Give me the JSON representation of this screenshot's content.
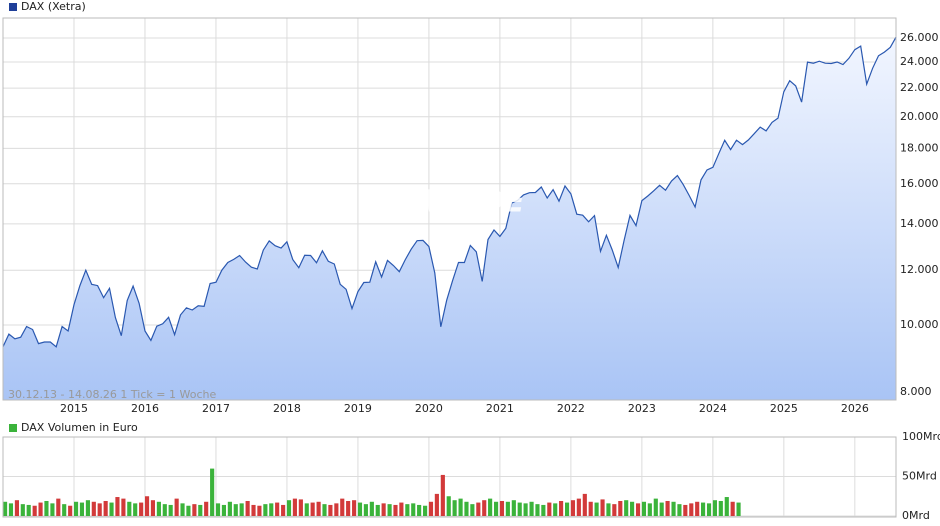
{
  "chart_data": [
    {
      "type": "line",
      "title": "DAX (Xetra)",
      "watermark": "ARIVA.DE",
      "annotation": "30.12.13 - 14.08.26   1 Tick = 1 Woche",
      "log_scale": true,
      "grid": true,
      "color": "#2a58b0",
      "legend_color": "#1f3f99",
      "x": [
        2014.0,
        2014.083,
        2014.167,
        2014.25,
        2014.333,
        2014.417,
        2014.5,
        2014.583,
        2014.667,
        2014.75,
        2014.833,
        2014.917,
        2015.0,
        2015.083,
        2015.167,
        2015.25,
        2015.333,
        2015.417,
        2015.5,
        2015.583,
        2015.667,
        2015.75,
        2015.833,
        2015.917,
        2016.0,
        2016.083,
        2016.167,
        2016.25,
        2016.333,
        2016.417,
        2016.5,
        2016.583,
        2016.667,
        2016.75,
        2016.833,
        2016.917,
        2017.0,
        2017.083,
        2017.167,
        2017.25,
        2017.333,
        2017.417,
        2017.5,
        2017.583,
        2017.667,
        2017.75,
        2017.833,
        2017.917,
        2018.0,
        2018.083,
        2018.167,
        2018.25,
        2018.333,
        2018.417,
        2018.5,
        2018.583,
        2018.667,
        2018.75,
        2018.833,
        2018.917,
        2019.0,
        2019.083,
        2019.167,
        2019.25,
        2019.333,
        2019.417,
        2019.5,
        2019.583,
        2019.667,
        2019.75,
        2019.833,
        2019.917,
        2020.0,
        2020.083,
        2020.167,
        2020.25,
        2020.333,
        2020.417,
        2020.5,
        2020.583,
        2020.667,
        2020.75,
        2020.833,
        2020.917,
        2021.0,
        2021.083,
        2021.167,
        2021.25,
        2021.333,
        2021.417,
        2021.5,
        2021.583,
        2021.667,
        2021.75,
        2021.833,
        2021.917,
        2022.0,
        2022.083,
        2022.167,
        2022.25,
        2022.333,
        2022.417,
        2022.5,
        2022.583,
        2022.667,
        2022.75,
        2022.833,
        2022.917,
        2023.0,
        2023.083,
        2023.167,
        2023.25,
        2023.333,
        2023.417,
        2023.5,
        2023.583,
        2023.667,
        2023.75,
        2023.833,
        2023.917,
        2024.0,
        2024.083,
        2024.167,
        2024.25,
        2024.333,
        2024.417,
        2024.5,
        2024.583,
        2024.667,
        2024.75,
        2024.833,
        2024.917,
        2025.0,
        2025.083,
        2025.167,
        2025.25,
        2025.333,
        2025.417,
        2025.5,
        2025.583,
        2025.667,
        2025.75,
        2025.833,
        2025.917,
        2026.0,
        2026.083,
        2026.167,
        2026.25,
        2026.333,
        2026.417,
        2026.5,
        2026.583
      ],
      "values": [
        9300,
        9700,
        9550,
        9600,
        9950,
        9850,
        9400,
        9450,
        9450,
        9300,
        9950,
        9800,
        10700,
        11400,
        12000,
        11450,
        11400,
        10950,
        11300,
        10250,
        9650,
        10850,
        11380,
        10750,
        9800,
        9500,
        9960,
        10040,
        10260,
        9680,
        10340,
        10590,
        10510,
        10660,
        10640,
        11480,
        11530,
        12000,
        12310,
        12440,
        12600,
        12330,
        12120,
        12050,
        12830,
        13230,
        13020,
        12920,
        13190,
        12430,
        12100,
        12610,
        12600,
        12300,
        12800,
        12360,
        12250,
        11450,
        11260,
        10560,
        11170,
        11520,
        11530,
        12340,
        11730,
        12400,
        12190,
        11940,
        12430,
        12870,
        13240,
        13250,
        12980,
        11890,
        9940,
        10860,
        11590,
        12310,
        12310,
        13030,
        12760,
        11560,
        13290,
        13720,
        13430,
        13790,
        15010,
        15140,
        15420,
        15530,
        15540,
        15830,
        15260,
        15690,
        15100,
        15880,
        15470,
        14460,
        14410,
        14100,
        14390,
        12780,
        13480,
        12830,
        12110,
        13250,
        14400,
        13920,
        15130,
        15360,
        15630,
        15920,
        15660,
        16150,
        16450,
        15950,
        15390,
        14810,
        16210,
        16750,
        16900,
        17680,
        18490,
        17930,
        18500,
        18230,
        18510,
        18900,
        19320,
        19080,
        19630,
        19910,
        21730,
        22550,
        22160,
        21000,
        23990,
        23900,
        24060,
        23900,
        23880,
        24000,
        23800,
        24300,
        25000,
        25300,
        22300,
        23500,
        24500,
        24800,
        25200,
        26100
      ],
      "xlim": [
        2014.0,
        2026.58
      ],
      "xticks": [
        2015,
        2016,
        2017,
        2018,
        2019,
        2020,
        2021,
        2022,
        2023,
        2024,
        2025,
        2026
      ],
      "ylim": [
        7790,
        29500
      ],
      "yticks": [
        {
          "value": 8000,
          "label": "8.000"
        },
        {
          "value": 10000,
          "label": "10.000"
        },
        {
          "value": 12000,
          "label": "12.000"
        },
        {
          "value": 14000,
          "label": "14.000"
        },
        {
          "value": 16000,
          "label": "16.000"
        },
        {
          "value": 18000,
          "label": "18.000"
        },
        {
          "value": 20000,
          "label": "20.000"
        },
        {
          "value": 22000,
          "label": "22.000"
        },
        {
          "value": 24000,
          "label": "24.000"
        },
        {
          "value": 26000,
          "label": "26.000"
        }
      ]
    },
    {
      "type": "bar",
      "title": "DAX Volumen in Euro",
      "legend_color": "#3bb33b",
      "up_color": "#3bb33b",
      "down_color": "#d23a3a",
      "grid": true,
      "x": [
        2014.0,
        2014.083,
        2014.167,
        2014.25,
        2014.333,
        2014.417,
        2014.5,
        2014.583,
        2014.667,
        2014.75,
        2014.833,
        2014.917,
        2015.0,
        2015.083,
        2015.167,
        2015.25,
        2015.333,
        2015.417,
        2015.5,
        2015.583,
        2015.667,
        2015.75,
        2015.833,
        2015.917,
        2016.0,
        2016.083,
        2016.167,
        2016.25,
        2016.333,
        2016.417,
        2016.5,
        2016.583,
        2016.667,
        2016.75,
        2016.833,
        2016.917,
        2017.0,
        2017.083,
        2017.167,
        2017.25,
        2017.333,
        2017.417,
        2017.5,
        2017.583,
        2017.667,
        2017.75,
        2017.833,
        2017.917,
        2018.0,
        2018.083,
        2018.167,
        2018.25,
        2018.333,
        2018.417,
        2018.5,
        2018.583,
        2018.667,
        2018.75,
        2018.833,
        2018.917,
        2019.0,
        2019.083,
        2019.167,
        2019.25,
        2019.333,
        2019.417,
        2019.5,
        2019.583,
        2019.667,
        2019.75,
        2019.833,
        2019.917,
        2020.0,
        2020.083,
        2020.167,
        2020.25,
        2020.333,
        2020.417,
        2020.5,
        2020.583,
        2020.667,
        2020.75,
        2020.833,
        2020.917,
        2021.0,
        2021.083,
        2021.167,
        2021.25,
        2021.333,
        2021.417,
        2021.5,
        2021.583,
        2021.667,
        2021.75,
        2021.833,
        2021.917,
        2022.0,
        2022.083,
        2022.167,
        2022.25,
        2022.333,
        2022.417,
        2022.5,
        2022.583,
        2022.667,
        2022.75,
        2022.833,
        2022.917,
        2023.0,
        2023.083,
        2023.167,
        2023.25,
        2023.333,
        2023.417,
        2023.5,
        2023.583,
        2023.667,
        2023.75,
        2023.833,
        2023.917,
        2024.0,
        2024.083,
        2024.167,
        2024.25,
        2024.333
      ],
      "values": [
        18,
        16,
        20,
        15,
        14,
        13,
        17,
        19,
        16,
        22,
        15,
        13,
        18,
        17,
        20,
        18,
        16,
        19,
        17,
        24,
        22,
        18,
        16,
        17,
        25,
        20,
        18,
        15,
        14,
        22,
        16,
        13,
        15,
        14,
        18,
        60,
        16,
        14,
        18,
        15,
        16,
        19,
        14,
        13,
        15,
        16,
        17,
        14,
        20,
        22,
        21,
        16,
        17,
        18,
        15,
        14,
        16,
        22,
        19,
        20,
        17,
        15,
        18,
        14,
        16,
        15,
        14,
        17,
        15,
        16,
        14,
        13,
        18,
        28,
        52,
        25,
        20,
        22,
        18,
        15,
        17,
        20,
        22,
        18,
        19,
        18,
        20,
        17,
        16,
        18,
        15,
        14,
        17,
        16,
        19,
        17,
        20,
        22,
        28,
        18,
        17,
        21,
        16,
        15,
        19,
        20,
        18,
        16,
        18,
        16,
        22,
        17,
        19,
        18,
        15,
        14,
        16,
        18,
        17,
        16,
        20,
        19,
        24,
        18,
        17
      ],
      "ylim": [
        0,
        100
      ],
      "yticks": [
        {
          "value": 0,
          "label": "0Mrd"
        },
        {
          "value": 50,
          "label": "50Mrd"
        },
        {
          "value": 100,
          "label": "100Mrd"
        }
      ]
    }
  ]
}
